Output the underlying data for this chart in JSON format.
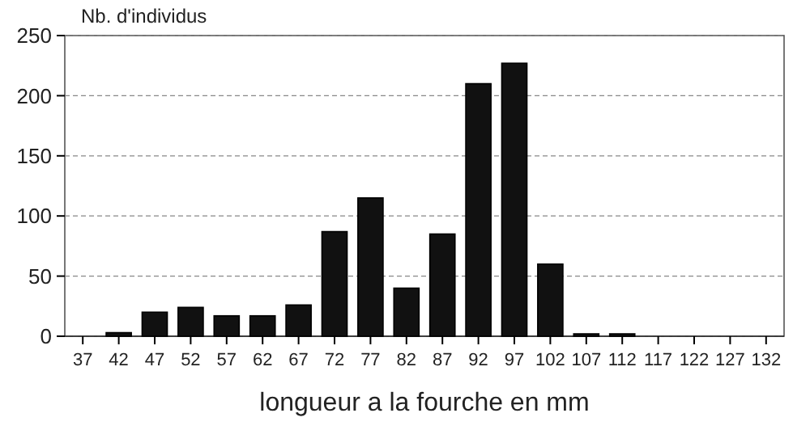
{
  "chart_data": {
    "type": "bar",
    "xlabel": "longueur a la fourche en mm",
    "ylabel": "Nb. d'individus",
    "categories": [
      "37",
      "42",
      "47",
      "52",
      "57",
      "62",
      "67",
      "72",
      "77",
      "82",
      "87",
      "92",
      "97",
      "102",
      "107",
      "112",
      "117",
      "122",
      "127",
      "132"
    ],
    "values": [
      0,
      3,
      20,
      24,
      17,
      17,
      26,
      87,
      115,
      40,
      85,
      210,
      227,
      60,
      2,
      2,
      0,
      0,
      0,
      0
    ],
    "color": "#111111",
    "ylim": [
      0,
      250
    ],
    "yticks": [
      0,
      50,
      100,
      150,
      200,
      250
    ],
    "grid": "y"
  }
}
